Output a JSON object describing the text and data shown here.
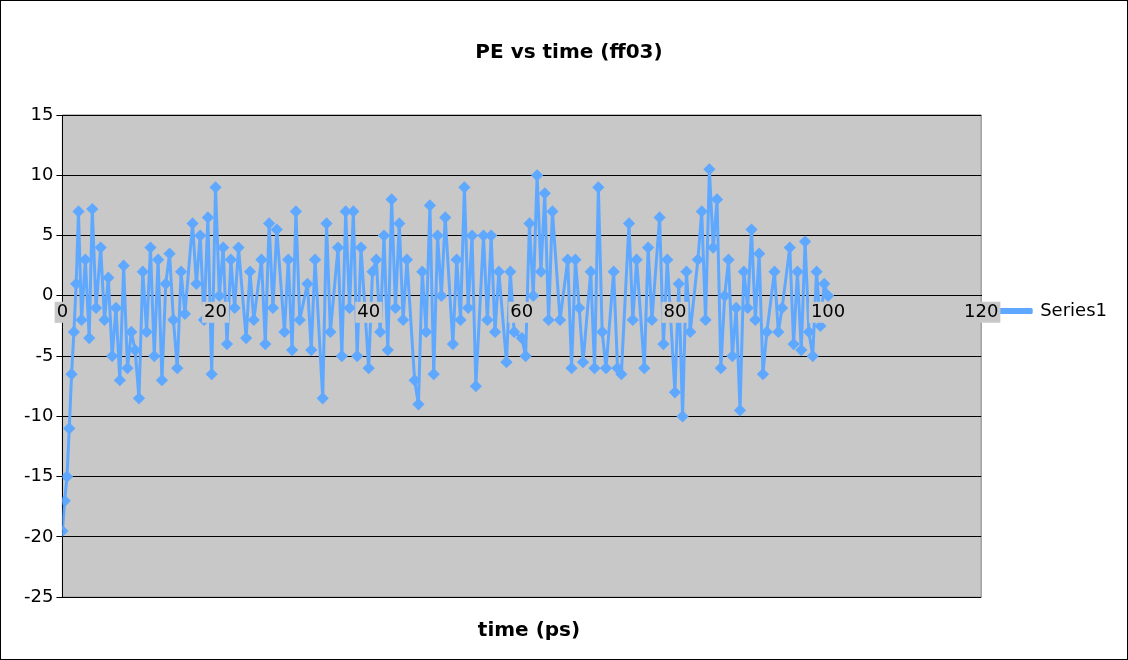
{
  "chart_data": {
    "type": "line",
    "title": "PE vs time (ff03)",
    "xlabel": "time (ps)",
    "xlim": [
      0,
      120
    ],
    "xticks": [
      0,
      20,
      40,
      60,
      80,
      100,
      120
    ],
    "ylim": [
      -25,
      15
    ],
    "yticks": [
      -25,
      -20,
      -15,
      -10,
      -5,
      0,
      5,
      10,
      15
    ],
    "grid": "y",
    "legend": "right",
    "marker": "diamond",
    "line_style": "solid",
    "series": [
      {
        "name": "Series1",
        "color": "#5fa8ff",
        "x": [
          0,
          0.3,
          0.6,
          0.9,
          1.2,
          1.5,
          1.8,
          2.1,
          2.5,
          3,
          3.5,
          3.9,
          4.4,
          5,
          5.5,
          6,
          6.5,
          7,
          7.5,
          8,
          8.5,
          9,
          9.5,
          10,
          10.5,
          11,
          11.5,
          12,
          12.5,
          13,
          13.5,
          14,
          14.5,
          15,
          15.5,
          16,
          17,
          17.5,
          18,
          18.5,
          19,
          19.5,
          20,
          20.5,
          21,
          21.5,
          22,
          22.5,
          23,
          24,
          24.5,
          25,
          26,
          26.5,
          27,
          27.5,
          28,
          29,
          29.5,
          30,
          30.5,
          31,
          32,
          32.5,
          33,
          34,
          34.5,
          35,
          36,
          36.5,
          37,
          37.5,
          38,
          38.5,
          39,
          40,
          40.5,
          41,
          41.5,
          42,
          42.5,
          43,
          43.5,
          44,
          44.5,
          45,
          46,
          46.5,
          47,
          47.5,
          48,
          48.5,
          49,
          49.5,
          50,
          51,
          51.5,
          52,
          52.5,
          53,
          53.5,
          54,
          55,
          55.5,
          56,
          56.5,
          57,
          58,
          58.5,
          59,
          60,
          60.5,
          61,
          61.5,
          62,
          62.5,
          63,
          63.5,
          64,
          65,
          66,
          66.5,
          67,
          67.5,
          68,
          69,
          69.5,
          70,
          70.5,
          71,
          72,
          72.5,
          73,
          74,
          74.5,
          75,
          76,
          76.5,
          77,
          78,
          78.5,
          79,
          80,
          80.5,
          81,
          81.5,
          82,
          83,
          83.5,
          84,
          84.5,
          85,
          85.5,
          86,
          86.5,
          87,
          87.5,
          88,
          88.5,
          89,
          89.5,
          90,
          90.5,
          91,
          91.5,
          92,
          93,
          93.5,
          94,
          95,
          95.5,
          96,
          96.5,
          97,
          97.5,
          98,
          98.5,
          99,
          99.5,
          100
        ],
        "values": [
          -19.5,
          -17,
          -15,
          -11,
          -6.5,
          -3,
          1,
          7,
          -2,
          3,
          -3.5,
          7.2,
          -1,
          4,
          -2,
          1.5,
          -5,
          -1,
          -7,
          2.5,
          -6,
          -3,
          -4.5,
          -8.5,
          2,
          -3,
          4,
          -5,
          3,
          -7,
          1,
          3.5,
          -2,
          -6,
          2,
          -1.5,
          6,
          1,
          5,
          -2,
          6.5,
          -6.5,
          9,
          0,
          4,
          -4,
          3,
          -1,
          4,
          -3.5,
          2,
          -2,
          3,
          -4,
          6,
          -1,
          5.5,
          -3,
          3,
          -4.5,
          7,
          -2,
          1,
          -4.5,
          3,
          -8.5,
          6,
          -3,
          4,
          -5,
          7,
          -1,
          7,
          -5,
          4,
          -6,
          2,
          3,
          -3,
          5,
          -4.5,
          8,
          -1,
          6,
          -2,
          3,
          -7,
          -9,
          2,
          -3,
          7.5,
          -6.5,
          5,
          0,
          6.5,
          -4,
          3,
          -2,
          9,
          -1,
          5,
          -7.5,
          5,
          -2,
          5,
          -3,
          2,
          -5.5,
          2,
          -3,
          -3.5,
          -5,
          6,
          0,
          10,
          2,
          8.5,
          -2,
          7,
          -2,
          3,
          -6,
          3,
          -1,
          -5.5,
          2,
          -6,
          9,
          -3,
          -6,
          2,
          -6,
          -6.5,
          6,
          -2,
          3,
          -6,
          4,
          -2,
          6.5,
          -4,
          3,
          -8,
          1,
          -10,
          2,
          -3,
          3,
          7,
          -2,
          10.5,
          4,
          8,
          -6,
          0,
          3,
          -5,
          -1,
          -9.5,
          2,
          -1,
          5.5,
          -2,
          3.5,
          -6.5,
          -3,
          2,
          -3,
          -1,
          4,
          -4,
          2,
          -4.5,
          4.5,
          -3,
          -5,
          2,
          -2.5,
          1,
          0
        ]
      }
    ]
  }
}
